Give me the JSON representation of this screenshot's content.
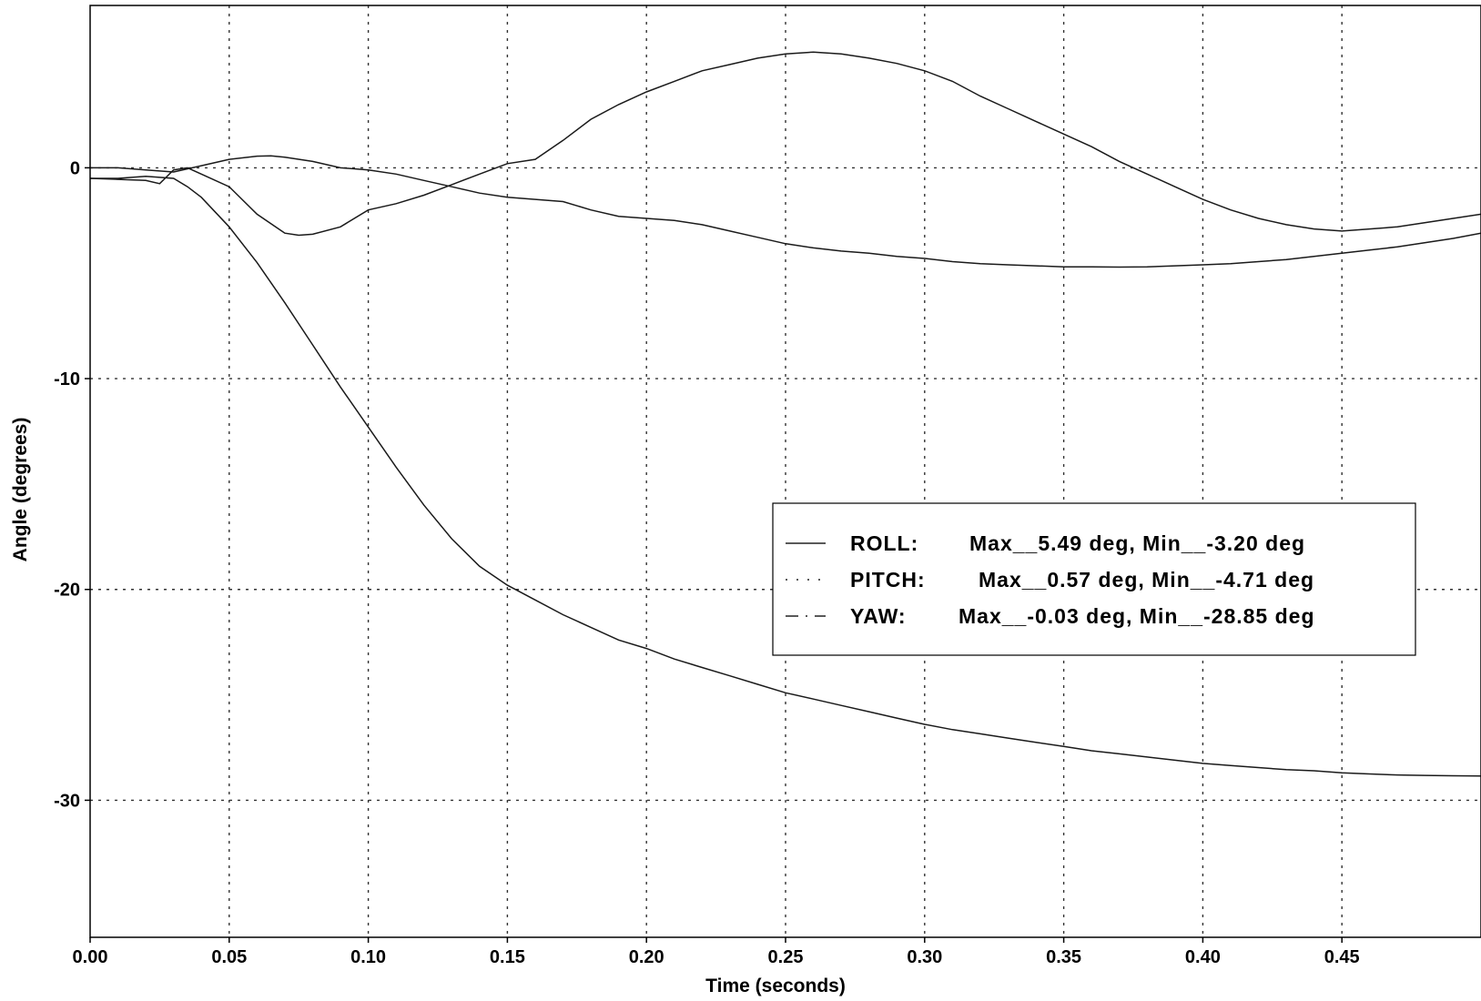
{
  "chart_data": {
    "type": "line",
    "title": "",
    "xlabel": "Time (seconds)",
    "ylabel": "Angle (degrees)",
    "xlim": [
      0,
      0.5
    ],
    "ylim": [
      -36.5,
      7.7
    ],
    "xticks": [
      0,
      0.05,
      0.1,
      0.15,
      0.2,
      0.25,
      0.3,
      0.35,
      0.4,
      0.45
    ],
    "xtick_labels": [
      "0.00",
      "0.05",
      "0.10",
      "0.15",
      "0.20",
      "0.25",
      "0.30",
      "0.35",
      "0.40",
      "0.45"
    ],
    "yticks": [
      0,
      -10,
      -20,
      -30
    ],
    "ytick_labels": [
      "0",
      "-10",
      "-20",
      "-30"
    ],
    "grid": true,
    "legend_position": "center-right",
    "series": [
      {
        "name": "ROLL:",
        "legend_stats": "Max__5.49 deg, Min__-3.20 deg",
        "style": "solid",
        "x": [
          0,
          0.01,
          0.02,
          0.025,
          0.03,
          0.035,
          0.04,
          0.05,
          0.06,
          0.07,
          0.075,
          0.08,
          0.09,
          0.1,
          0.11,
          0.12,
          0.13,
          0.14,
          0.15,
          0.16,
          0.17,
          0.18,
          0.19,
          0.2,
          0.21,
          0.22,
          0.23,
          0.24,
          0.25,
          0.26,
          0.27,
          0.28,
          0.29,
          0.3,
          0.31,
          0.32,
          0.33,
          0.34,
          0.35,
          0.36,
          0.37,
          0.38,
          0.39,
          0.4,
          0.41,
          0.42,
          0.43,
          0.44,
          0.45,
          0.46,
          0.47,
          0.48,
          0.49,
          0.5
        ],
        "y": [
          -0.5,
          -0.55,
          -0.6,
          -0.75,
          -0.1,
          0.0,
          -0.3,
          -0.9,
          -2.2,
          -3.1,
          -3.2,
          -3.15,
          -2.8,
          -2.0,
          -1.7,
          -1.3,
          -0.8,
          -0.3,
          0.2,
          0.4,
          1.3,
          2.3,
          3.0,
          3.6,
          4.1,
          4.6,
          4.9,
          5.2,
          5.4,
          5.49,
          5.4,
          5.2,
          4.95,
          4.6,
          4.1,
          3.4,
          2.8,
          2.2,
          1.6,
          1.0,
          0.3,
          -0.3,
          -0.9,
          -1.5,
          -2.0,
          -2.4,
          -2.7,
          -2.9,
          -3.0,
          -2.9,
          -2.8,
          -2.6,
          -2.4,
          -2.2
        ]
      },
      {
        "name": "PITCH:",
        "legend_stats": "Max__0.57 deg, Min__-4.71 deg",
        "style": "dotted",
        "x": [
          0,
          0.01,
          0.02,
          0.03,
          0.04,
          0.05,
          0.06,
          0.065,
          0.07,
          0.08,
          0.09,
          0.1,
          0.11,
          0.12,
          0.13,
          0.14,
          0.15,
          0.16,
          0.17,
          0.18,
          0.19,
          0.2,
          0.21,
          0.22,
          0.23,
          0.24,
          0.25,
          0.26,
          0.27,
          0.28,
          0.29,
          0.3,
          0.31,
          0.32,
          0.33,
          0.34,
          0.35,
          0.36,
          0.37,
          0.38,
          0.39,
          0.4,
          0.41,
          0.42,
          0.43,
          0.44,
          0.45,
          0.46,
          0.47,
          0.48,
          0.49,
          0.5
        ],
        "y": [
          0.0,
          0.0,
          -0.1,
          -0.2,
          0.1,
          0.4,
          0.55,
          0.57,
          0.5,
          0.3,
          0.0,
          -0.1,
          -0.3,
          -0.6,
          -0.9,
          -1.2,
          -1.4,
          -1.5,
          -1.6,
          -2.0,
          -2.3,
          -2.4,
          -2.5,
          -2.7,
          -3.0,
          -3.3,
          -3.6,
          -3.8,
          -3.95,
          -4.05,
          -4.2,
          -4.3,
          -4.45,
          -4.55,
          -4.6,
          -4.65,
          -4.7,
          -4.7,
          -4.71,
          -4.7,
          -4.65,
          -4.6,
          -4.55,
          -4.45,
          -4.35,
          -4.2,
          -4.05,
          -3.9,
          -3.75,
          -3.55,
          -3.35,
          -3.1
        ]
      },
      {
        "name": "YAW:",
        "legend_stats": "Max__-0.03 deg, Min__-28.85 deg",
        "style": "dash-dot",
        "x": [
          0,
          0.01,
          0.02,
          0.03,
          0.035,
          0.04,
          0.05,
          0.06,
          0.07,
          0.08,
          0.09,
          0.1,
          0.11,
          0.12,
          0.13,
          0.14,
          0.15,
          0.16,
          0.17,
          0.18,
          0.19,
          0.2,
          0.21,
          0.22,
          0.23,
          0.24,
          0.25,
          0.26,
          0.27,
          0.28,
          0.29,
          0.3,
          0.31,
          0.32,
          0.33,
          0.34,
          0.35,
          0.36,
          0.37,
          0.38,
          0.39,
          0.4,
          0.41,
          0.42,
          0.43,
          0.44,
          0.45,
          0.46,
          0.47,
          0.48,
          0.49,
          0.5
        ],
        "y": [
          -0.5,
          -0.5,
          -0.4,
          -0.5,
          -0.9,
          -1.4,
          -2.8,
          -4.5,
          -6.4,
          -8.4,
          -10.4,
          -12.3,
          -14.2,
          -16.0,
          -17.6,
          -18.9,
          -19.8,
          -20.5,
          -21.2,
          -21.8,
          -22.4,
          -22.8,
          -23.3,
          -23.7,
          -24.1,
          -24.5,
          -24.9,
          -25.2,
          -25.5,
          -25.8,
          -26.1,
          -26.4,
          -26.65,
          -26.85,
          -27.05,
          -27.25,
          -27.45,
          -27.65,
          -27.8,
          -27.95,
          -28.1,
          -28.25,
          -28.35,
          -28.45,
          -28.55,
          -28.6,
          -28.7,
          -28.75,
          -28.8,
          -28.82,
          -28.84,
          -28.85
        ]
      }
    ]
  }
}
